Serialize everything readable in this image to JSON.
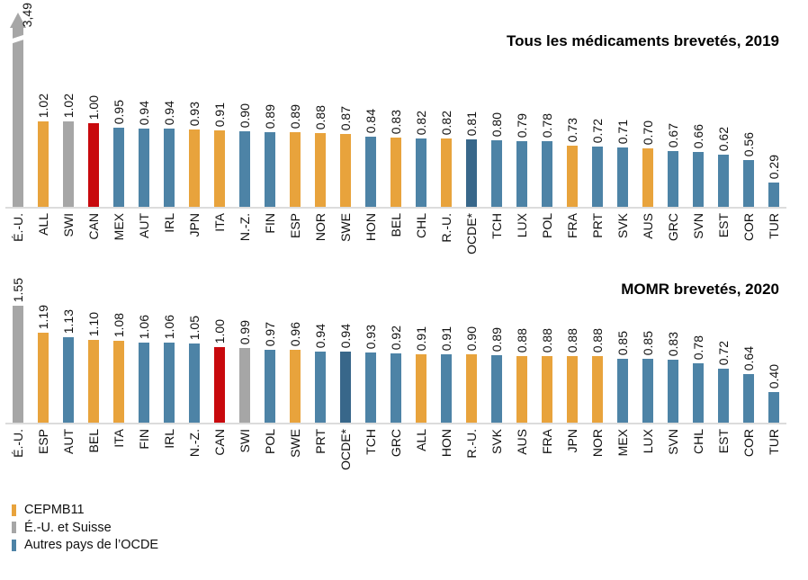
{
  "colors": {
    "cepmb11": "#E8A33C",
    "us_swiss": "#A6A6A6",
    "canada": "#C8090D",
    "ocde": "#38678A",
    "other": "#4D83A6",
    "axis": "#DCDCDC"
  },
  "chart_data": [
    {
      "type": "bar",
      "title": "Tous les médicaments brevetés, 2019",
      "grid": false,
      "value_labels_rotated": true,
      "ylim": [
        0,
        2.4
      ],
      "truncated_index": 0,
      "truncated_note": "É.-U. bar cut with break symbol and upward arrow",
      "categories": [
        "É.-U.",
        "ALL",
        "SWI",
        "CAN",
        "MEX",
        "AUT",
        "IRL",
        "JPN",
        "ITA",
        "N.-Z.",
        "FIN",
        "ESP",
        "NOR",
        "SWE",
        "HON",
        "BEL",
        "CHL",
        "R.-U.",
        "OCDE*",
        "TCH",
        "LUX",
        "POL",
        "FRA",
        "PRT",
        "SVK",
        "AUS",
        "GRC",
        "SVN",
        "EST",
        "COR",
        "TUR"
      ],
      "values": [
        3.49,
        1.02,
        1.02,
        1.0,
        0.95,
        0.94,
        0.94,
        0.93,
        0.91,
        0.9,
        0.89,
        0.89,
        0.88,
        0.87,
        0.84,
        0.83,
        0.82,
        0.82,
        0.81,
        0.8,
        0.79,
        0.78,
        0.73,
        0.72,
        0.71,
        0.7,
        0.67,
        0.66,
        0.62,
        0.56,
        0.29
      ],
      "labels": [
        "3,49",
        "1.02",
        "1.02",
        "1.00",
        "0.95",
        "0.94",
        "0.94",
        "0.93",
        "0.91",
        "0.90",
        "0.89",
        "0.89",
        "0.88",
        "0.87",
        "0.84",
        "0.83",
        "0.82",
        "0.82",
        "0.81",
        "0.80",
        "0.79",
        "0.78",
        "0.73",
        "0.72",
        "0.71",
        "0.70",
        "0.67",
        "0.66",
        "0.62",
        "0.56",
        "0.29"
      ],
      "groups": [
        "us_swiss",
        "cepmb11",
        "us_swiss",
        "canada",
        "other",
        "other",
        "other",
        "cepmb11",
        "cepmb11",
        "other",
        "other",
        "cepmb11",
        "cepmb11",
        "cepmb11",
        "other",
        "cepmb11",
        "other",
        "cepmb11",
        "ocde",
        "other",
        "other",
        "other",
        "cepmb11",
        "other",
        "other",
        "cepmb11",
        "other",
        "other",
        "other",
        "other",
        "other"
      ]
    },
    {
      "type": "bar",
      "title": "MOMR brevetés, 2020",
      "grid": false,
      "value_labels_rotated": true,
      "ylim": [
        0,
        2.1
      ],
      "truncated_index": null,
      "categories": [
        "É.-U.",
        "ESP",
        "AUT",
        "BEL",
        "ITA",
        "FIN",
        "IRL",
        "N.-Z.",
        "CAN",
        "SWI",
        "POL",
        "SWE",
        "PRT",
        "OCDE*",
        "TCH",
        "GRC",
        "ALL",
        "HON",
        "R.-U.",
        "SVK",
        "AUS",
        "FRA",
        "JPN",
        "NOR",
        "MEX",
        "LUX",
        "SVN",
        "CHL",
        "EST",
        "COR",
        "TUR"
      ],
      "values": [
        1.55,
        1.19,
        1.13,
        1.1,
        1.08,
        1.06,
        1.06,
        1.05,
        1.0,
        0.99,
        0.97,
        0.96,
        0.94,
        0.94,
        0.93,
        0.92,
        0.91,
        0.91,
        0.9,
        0.89,
        0.88,
        0.88,
        0.88,
        0.88,
        0.85,
        0.85,
        0.83,
        0.78,
        0.72,
        0.64,
        0.4
      ],
      "labels": [
        "1.55",
        "1.19",
        "1.13",
        "1.10",
        "1.08",
        "1.06",
        "1.06",
        "1.05",
        "1.00",
        "0.99",
        "0.97",
        "0.96",
        "0.94",
        "0.94",
        "0.93",
        "0.92",
        "0.91",
        "0.91",
        "0.90",
        "0.89",
        "0.88",
        "0.88",
        "0.88",
        "0.88",
        "0.85",
        "0.85",
        "0.83",
        "0.78",
        "0.72",
        "0.64",
        "0.40"
      ],
      "groups": [
        "us_swiss",
        "cepmb11",
        "other",
        "cepmb11",
        "cepmb11",
        "other",
        "other",
        "other",
        "canada",
        "us_swiss",
        "other",
        "cepmb11",
        "other",
        "ocde",
        "other",
        "other",
        "cepmb11",
        "other",
        "cepmb11",
        "other",
        "cepmb11",
        "cepmb11",
        "cepmb11",
        "cepmb11",
        "other",
        "other",
        "other",
        "other",
        "other",
        "other",
        "other"
      ]
    }
  ],
  "legend": {
    "items": [
      {
        "label": "CEPMB11",
        "color": "#E8A33C"
      },
      {
        "label": "É.-U. et Suisse",
        "color": "#A6A6A6"
      },
      {
        "label": "Autres pays de l’OCDE",
        "color": "#4D83A6"
      }
    ]
  }
}
